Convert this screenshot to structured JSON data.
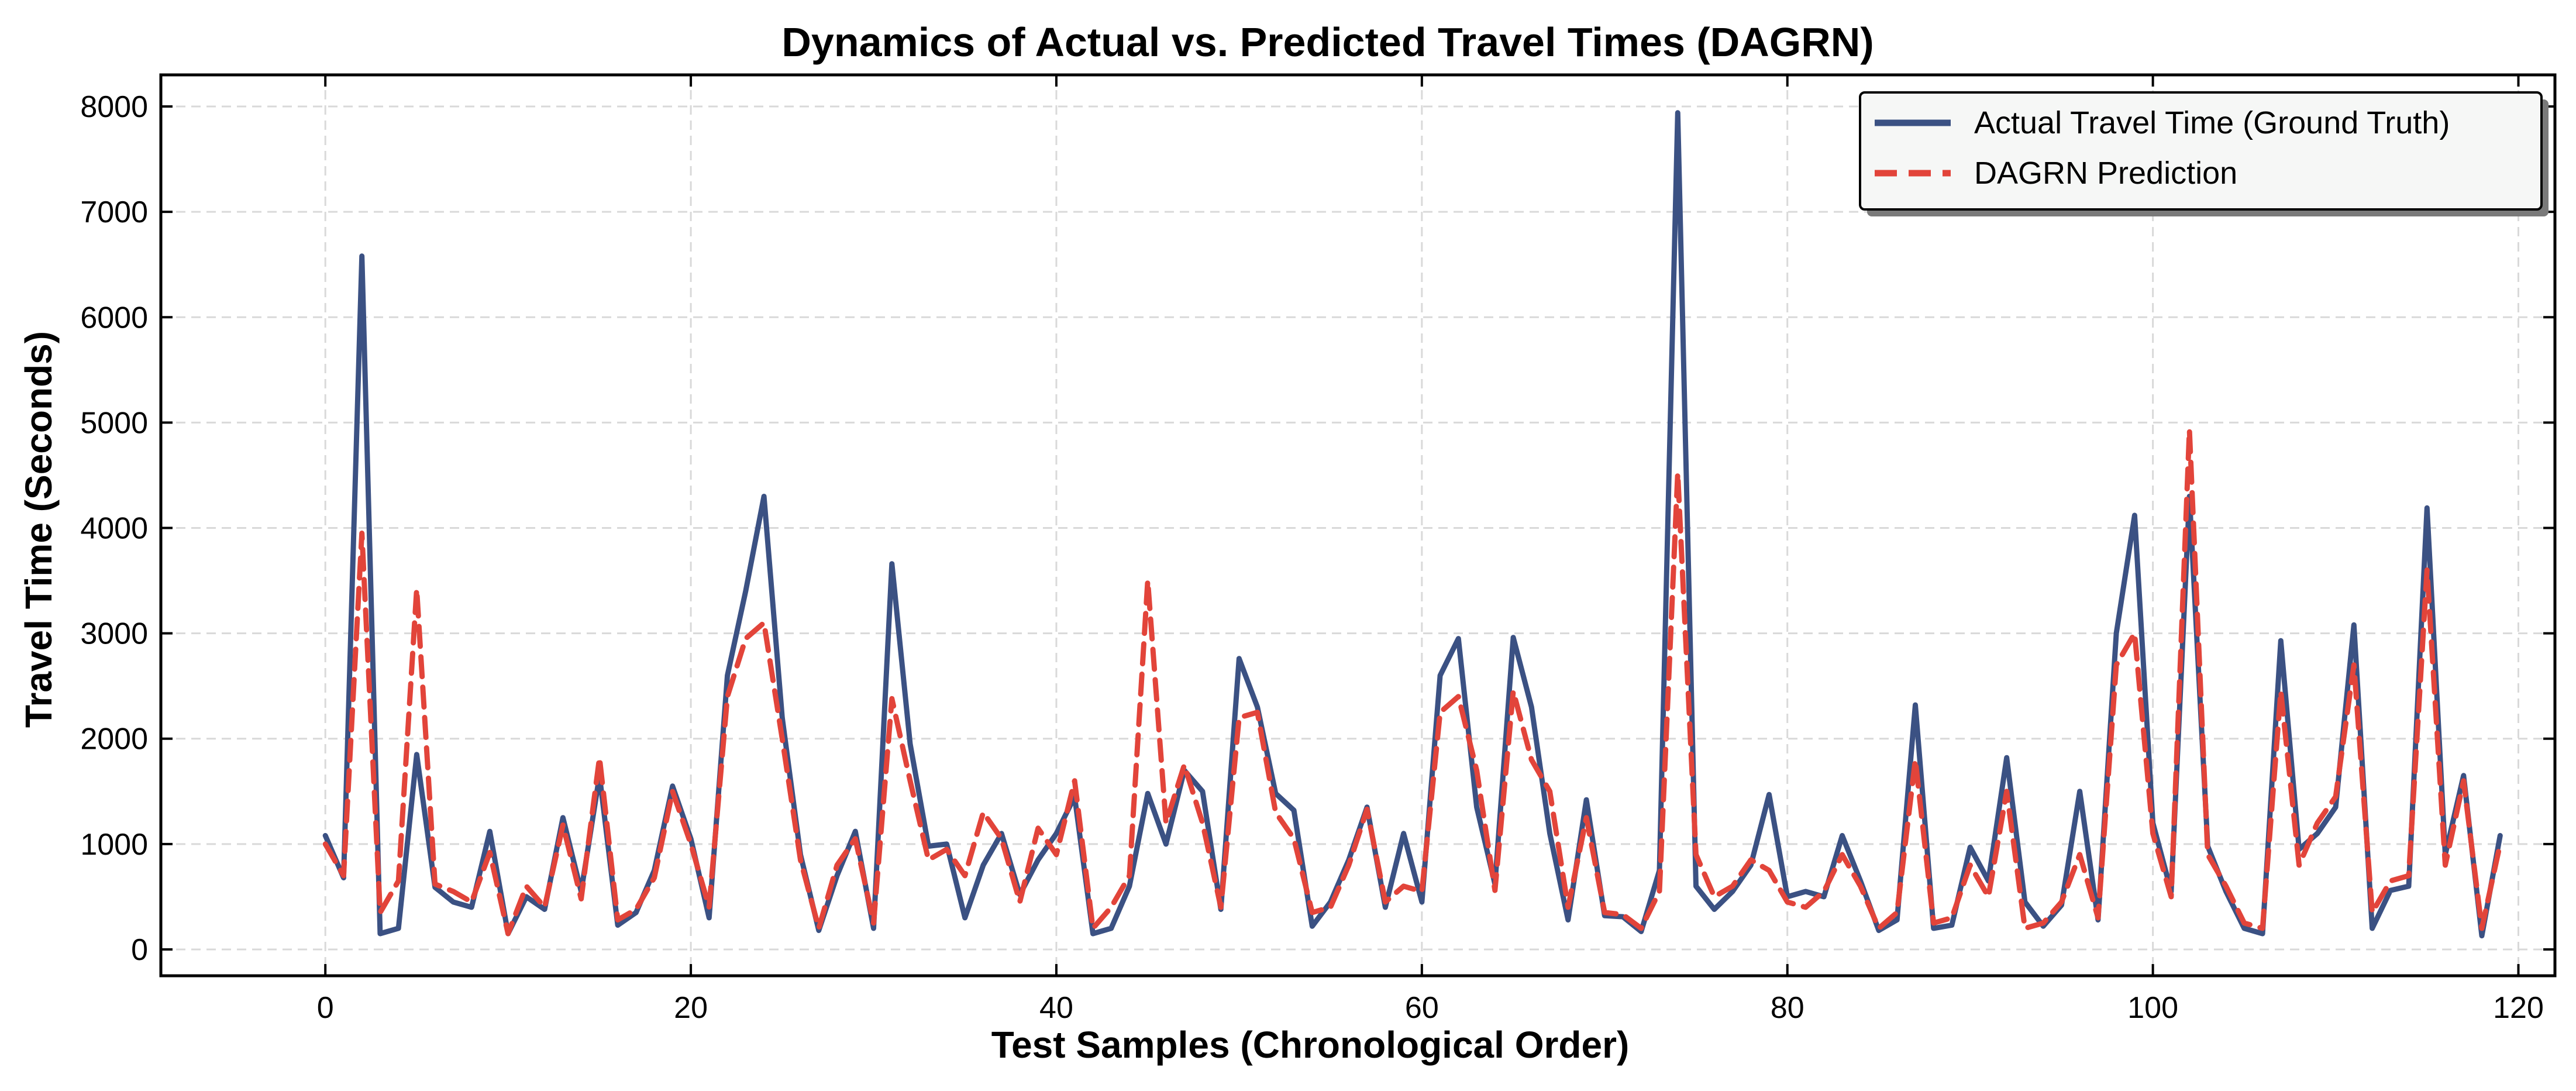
{
  "chart_data": {
    "type": "line",
    "title": "Dynamics of Actual vs. Predicted Travel Times (DAGRN)",
    "xlabel": "Test Samples (Chronological Order)",
    "ylabel": "Travel Time (Seconds)",
    "xlim": [
      -9,
      122
    ],
    "ylim": [
      -250,
      8300
    ],
    "xticks": [
      0,
      20,
      40,
      60,
      80,
      100,
      120
    ],
    "yticks": [
      0,
      1000,
      2000,
      3000,
      4000,
      5000,
      6000,
      7000,
      8000
    ],
    "grid": true,
    "legend_position": "top-right",
    "series": [
      {
        "name": "Actual Travel Time (Ground Truth)",
        "color": "#3b5183",
        "style": "solid",
        "values": [
          1080,
          680,
          6580,
          150,
          200,
          1850,
          590,
          450,
          400,
          1120,
          150,
          500,
          380,
          1250,
          550,
          1650,
          230,
          350,
          750,
          1550,
          1050,
          300,
          2600,
          3400,
          4300,
          2200,
          900,
          180,
          700,
          1120,
          200,
          3660,
          1950,
          980,
          1000,
          300,
          800,
          1100,
          520,
          850,
          1100,
          1450,
          150,
          200,
          600,
          1480,
          1000,
          1700,
          1500,
          380,
          2760,
          2300,
          1480,
          1320,
          220,
          450,
          850,
          1350,
          400,
          1100,
          450,
          2600,
          2950,
          1350,
          620,
          2960,
          2300,
          1100,
          280,
          1420,
          320,
          310,
          170,
          750,
          7940,
          600,
          380,
          550,
          800,
          1470,
          500,
          550,
          500,
          1080,
          650,
          180,
          280,
          2320,
          200,
          230,
          970,
          650,
          1820,
          450,
          220,
          420,
          1500,
          280,
          3000,
          4120,
          1200,
          550,
          4300,
          980,
          550,
          200,
          150,
          2930,
          950,
          1100,
          1350,
          3080,
          200,
          560,
          600,
          4190,
          900,
          1650,
          130,
          1080
        ]
      },
      {
        "name": "DAGRN Prediction",
        "color": "#e2443a",
        "style": "dashed",
        "values": [
          1000,
          700,
          3950,
          350,
          650,
          3420,
          620,
          550,
          450,
          920,
          150,
          600,
          400,
          1180,
          480,
          1820,
          280,
          380,
          680,
          1500,
          1000,
          400,
          2400,
          2950,
          3100,
          2000,
          850,
          200,
          800,
          1050,
          250,
          2380,
          1600,
          850,
          950,
          700,
          1300,
          1050,
          450,
          1150,
          900,
          1600,
          200,
          400,
          700,
          3500,
          1200,
          1750,
          1200,
          400,
          2200,
          2250,
          1300,
          1050,
          350,
          400,
          800,
          1330,
          450,
          600,
          550,
          2250,
          2400,
          1700,
          560,
          2450,
          1800,
          1500,
          400,
          1250,
          350,
          330,
          200,
          550,
          4520,
          900,
          500,
          600,
          850,
          750,
          450,
          400,
          550,
          900,
          600,
          200,
          350,
          1800,
          250,
          300,
          800,
          500,
          1500,
          200,
          250,
          450,
          900,
          300,
          2700,
          3000,
          1100,
          500,
          4930,
          900,
          600,
          250,
          200,
          2450,
          800,
          1200,
          1450,
          2700,
          350,
          650,
          700,
          3600,
          800,
          1600,
          200,
          1000
        ]
      }
    ]
  }
}
